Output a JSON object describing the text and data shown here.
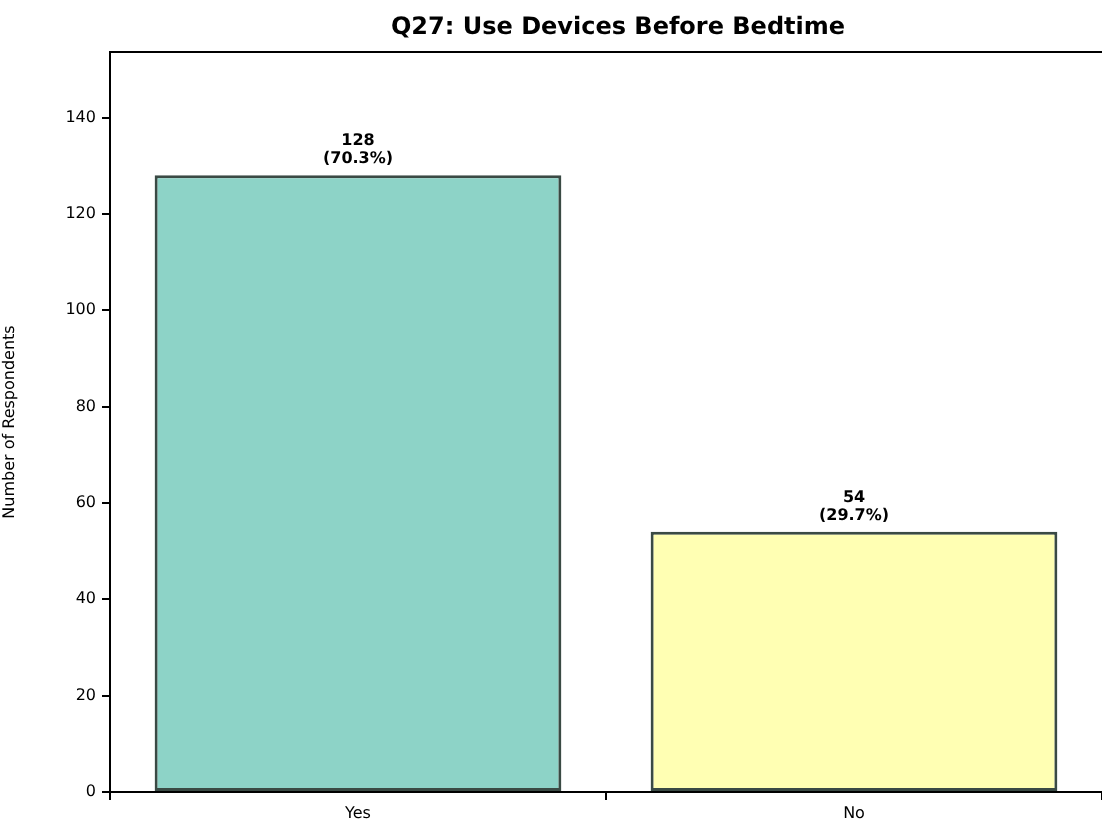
{
  "chart_data": {
    "type": "bar",
    "title": "Q27: Use Devices Before Bedtime",
    "ylabel": "Number of Respondents",
    "categories": [
      "Yes",
      "No"
    ],
    "values": [
      128,
      54
    ],
    "colors": [
      "#8dd3c7",
      "#ffffb3"
    ],
    "value_labels": [
      "128\n(70.3%)",
      "54\n(29.7%)"
    ],
    "ylim": [
      0,
      153.6
    ],
    "yticks": [
      0,
      20,
      40,
      60,
      80,
      100,
      120,
      140
    ]
  }
}
